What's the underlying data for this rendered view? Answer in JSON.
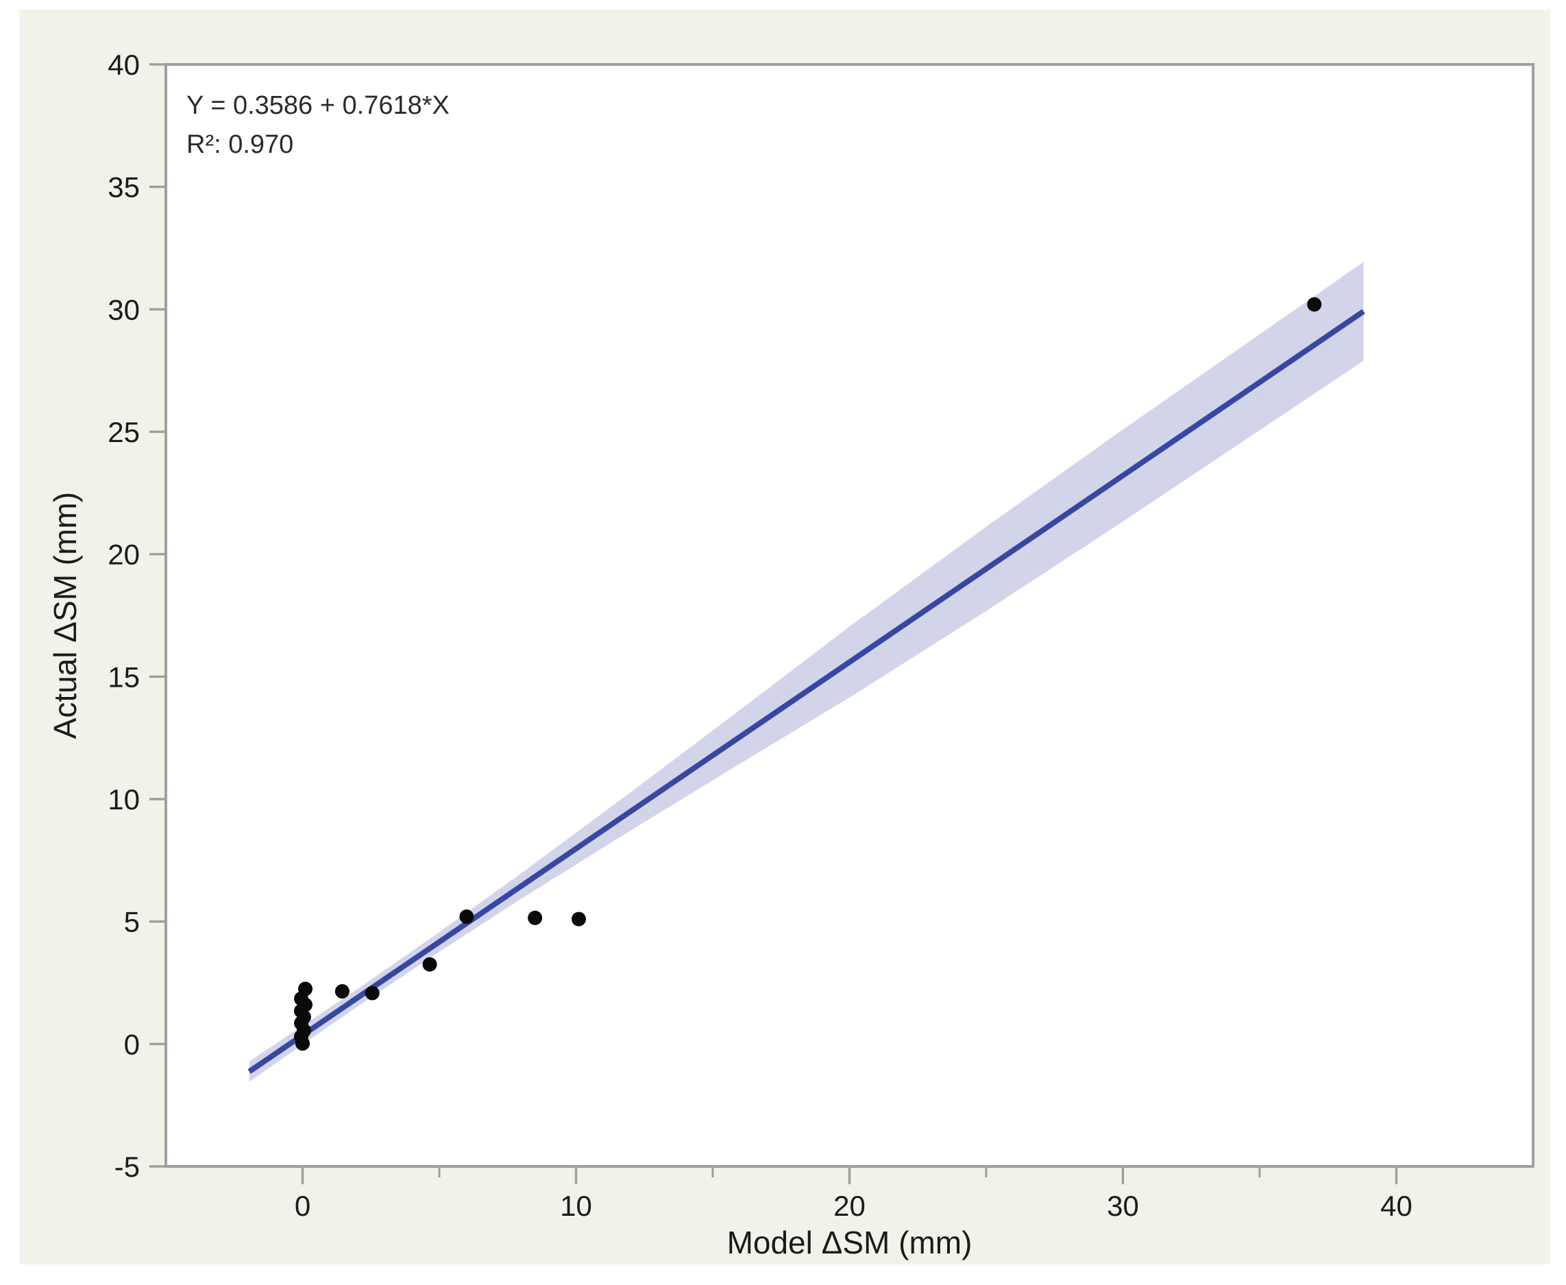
{
  "chart_data": {
    "type": "scatter",
    "title": "",
    "xlabel": "Model ΔSM (mm)",
    "ylabel": "Actual ΔSM (mm)",
    "annotation": {
      "equation": "Y = 0.3586 + 0.7618*X",
      "r2": "R²: 0.970"
    },
    "xlim": [
      -5,
      45
    ],
    "ylim": [
      -5,
      40
    ],
    "x_major_ticks": [
      0,
      10,
      20,
      30,
      40
    ],
    "x_minor_ticks": [
      5,
      15,
      25,
      35
    ],
    "y_major_ticks": [
      -5,
      0,
      5,
      10,
      15,
      20,
      25,
      30,
      35,
      40
    ],
    "grid": false,
    "legend": false,
    "points": [
      [
        0.1,
        2.25
      ],
      [
        -0.05,
        1.85
      ],
      [
        0.1,
        1.6
      ],
      [
        -0.05,
        1.35
      ],
      [
        0.05,
        1.1
      ],
      [
        -0.05,
        0.85
      ],
      [
        0.05,
        0.55
      ],
      [
        -0.05,
        0.3
      ],
      [
        0.0,
        0.02
      ],
      [
        1.45,
        2.15
      ],
      [
        2.55,
        2.08
      ],
      [
        4.65,
        3.25
      ],
      [
        6.0,
        5.2
      ],
      [
        8.5,
        5.15
      ],
      [
        10.1,
        5.1
      ],
      [
        37.0,
        30.2
      ]
    ],
    "regression": {
      "intercept": 0.3586,
      "slope": 0.7618,
      "r_squared": 0.97,
      "x_start": -1.95,
      "x_end": 38.8
    },
    "ci_band": {
      "x": [
        -1.95,
        0,
        2,
        5,
        8,
        12,
        16,
        20,
        25,
        30,
        35,
        38.8
      ],
      "half_width": [
        0.42,
        0.38,
        0.36,
        0.4,
        0.52,
        0.78,
        1.1,
        1.45,
        1.72,
        1.88,
        1.96,
        2.02
      ]
    },
    "colors": {
      "background": "#f3f2ea",
      "plot_bg": "#ffffff",
      "axis": "#9f9f9f",
      "line": "#3847a0",
      "band": "#d2d5ea",
      "point": "#0a0a0a",
      "text": "#1b1b1b"
    }
  }
}
